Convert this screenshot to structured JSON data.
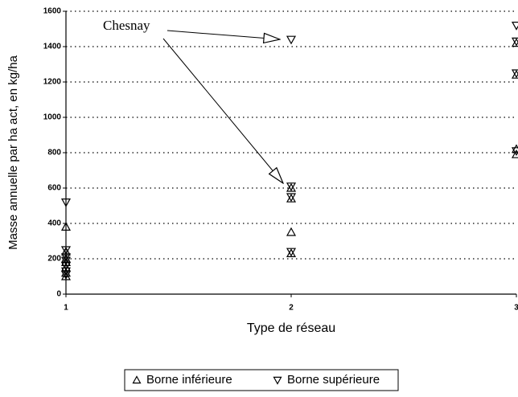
{
  "chart_data": {
    "type": "scatter",
    "x_label": "Type de réseau",
    "y_label": "Masse annuelle par ha act, en kg/ha",
    "annotation": "Chesnay",
    "xlim": [
      1,
      3
    ],
    "xticks": [
      1,
      2,
      3
    ],
    "ylim": [
      0,
      1600
    ],
    "yticks": [
      0,
      200,
      400,
      600,
      800,
      1000,
      1200,
      1400,
      1600
    ],
    "grid": true,
    "legend": "bottom",
    "series": [
      {
        "name": "Borne inférieure",
        "color": "#000000",
        "marker": "triangle-up",
        "x": [
          1,
          1,
          1,
          1,
          1,
          1,
          1,
          2,
          2,
          2,
          2,
          3,
          3,
          3,
          3
        ],
        "values": [
          380,
          240,
          200,
          180,
          150,
          120,
          100,
          600,
          540,
          350,
          230,
          1420,
          1240,
          820,
          790
        ]
      },
      {
        "name": "Borne supérieure",
        "color": "#000000",
        "marker": "triangle-down",
        "x": [
          1,
          1,
          1,
          1,
          1,
          1,
          1,
          2,
          2,
          2,
          2,
          3,
          3,
          3,
          3
        ],
        "values": [
          520,
          250,
          210,
          190,
          160,
          130,
          110,
          1440,
          610,
          550,
          240,
          1520,
          1430,
          1250,
          810
        ]
      }
    ]
  }
}
